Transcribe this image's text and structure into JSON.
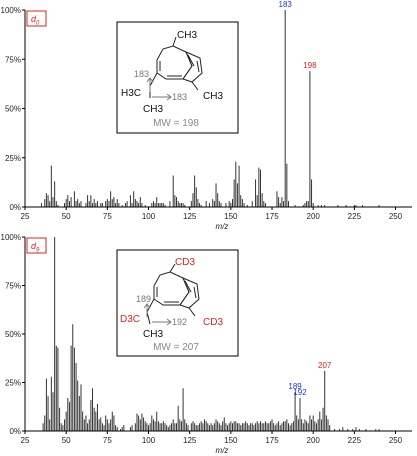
{
  "chart_data": [
    {
      "type": "bar",
      "badge": {
        "base": "d",
        "sub": "0"
      },
      "xlabel": "m/z",
      "xlim": [
        25,
        260
      ],
      "ylim": [
        0,
        100
      ],
      "xticks": [
        "25",
        "50",
        "75",
        "100",
        "125",
        "150",
        "175",
        "200",
        "225",
        "250"
      ],
      "yticks": [
        "0%",
        "25%",
        "50%",
        "75%",
        "100%"
      ],
      "grid": false,
      "peaks": [
        [
          35,
          2
        ],
        [
          37,
          4
        ],
        [
          38,
          7
        ],
        [
          39,
          6
        ],
        [
          40,
          3
        ],
        [
          41,
          21
        ],
        [
          42,
          5
        ],
        [
          43,
          13
        ],
        [
          44,
          3
        ],
        [
          45,
          1
        ],
        [
          49,
          2
        ],
        [
          50,
          4
        ],
        [
          51,
          6
        ],
        [
          52,
          3
        ],
        [
          53,
          5
        ],
        [
          55,
          8
        ],
        [
          56,
          3
        ],
        [
          57,
          4
        ],
        [
          58,
          2
        ],
        [
          59,
          3
        ],
        [
          62,
          2
        ],
        [
          63,
          6
        ],
        [
          64,
          3
        ],
        [
          65,
          6
        ],
        [
          66,
          2
        ],
        [
          67,
          4
        ],
        [
          68,
          2
        ],
        [
          69,
          3
        ],
        [
          71,
          2
        ],
        [
          72,
          2
        ],
        [
          74,
          3
        ],
        [
          75,
          4
        ],
        [
          76,
          3
        ],
        [
          77,
          8
        ],
        [
          78,
          4
        ],
        [
          79,
          5
        ],
        [
          80,
          2
        ],
        [
          81,
          4
        ],
        [
          82,
          2
        ],
        [
          84,
          1
        ],
        [
          86,
          2
        ],
        [
          87,
          3
        ],
        [
          89,
          6
        ],
        [
          90,
          2
        ],
        [
          91,
          8
        ],
        [
          92,
          4
        ],
        [
          93,
          3
        ],
        [
          94,
          2
        ],
        [
          95,
          5
        ],
        [
          96,
          2
        ],
        [
          98,
          1
        ],
        [
          102,
          2
        ],
        [
          103,
          3
        ],
        [
          104,
          2
        ],
        [
          105,
          5
        ],
        [
          106,
          2
        ],
        [
          107,
          2
        ],
        [
          108,
          2
        ],
        [
          109,
          2
        ],
        [
          110,
          1
        ],
        [
          113,
          3
        ],
        [
          115,
          16
        ],
        [
          116,
          6
        ],
        [
          117,
          5
        ],
        [
          118,
          3
        ],
        [
          119,
          2
        ],
        [
          120,
          2
        ],
        [
          121,
          2
        ],
        [
          122,
          1
        ],
        [
          126,
          3
        ],
        [
          127,
          7
        ],
        [
          128,
          16
        ],
        [
          129,
          10
        ],
        [
          130,
          4
        ],
        [
          131,
          2
        ],
        [
          132,
          1
        ],
        [
          135,
          3
        ],
        [
          137,
          2
        ],
        [
          139,
          4
        ],
        [
          140,
          3
        ],
        [
          141,
          12
        ],
        [
          142,
          7
        ],
        [
          143,
          3
        ],
        [
          144,
          2
        ],
        [
          147,
          2
        ],
        [
          149,
          3
        ],
        [
          150,
          2
        ],
        [
          151,
          4
        ],
        [
          152,
          14
        ],
        [
          153,
          23
        ],
        [
          154,
          12
        ],
        [
          155,
          21
        ],
        [
          156,
          6
        ],
        [
          157,
          4
        ],
        [
          158,
          2
        ],
        [
          160,
          1
        ],
        [
          163,
          3
        ],
        [
          165,
          14
        ],
        [
          166,
          6
        ],
        [
          167,
          20
        ],
        [
          168,
          19
        ],
        [
          169,
          7
        ],
        [
          170,
          3
        ],
        [
          171,
          2
        ],
        [
          178,
          8
        ],
        [
          179,
          5
        ],
        [
          180,
          2
        ],
        [
          181,
          5
        ],
        [
          182,
          3
        ],
        [
          183,
          100
        ],
        [
          184,
          22
        ],
        [
          185,
          3
        ],
        [
          189,
          1
        ],
        [
          194,
          1
        ],
        [
          195,
          2
        ],
        [
          196,
          3
        ],
        [
          197,
          3
        ],
        [
          198,
          69
        ],
        [
          199,
          14
        ],
        [
          200,
          2
        ],
        [
          203,
          1
        ],
        [
          205,
          1
        ],
        [
          207,
          1
        ],
        [
          215,
          1
        ],
        [
          220,
          1
        ],
        [
          225,
          1
        ],
        [
          226,
          1
        ],
        [
          230,
          1
        ],
        [
          240,
          1
        ]
      ],
      "labels": [
        {
          "x": 183,
          "y": 100,
          "text": "183",
          "color": "blue"
        },
        {
          "x": 198,
          "y": 69,
          "text": "198",
          "color": "red"
        }
      ],
      "molecule": {
        "substituents": [
          "CH3",
          "H3C",
          "CH3",
          "CH3"
        ],
        "fragments": [
          "183",
          "183"
        ],
        "mw": "MW = 198"
      }
    },
    {
      "type": "bar",
      "badge": {
        "base": "d",
        "sub": "9"
      },
      "xlabel": "m/z",
      "xlim": [
        25,
        260
      ],
      "ylim": [
        0,
        100
      ],
      "xticks": [
        "25",
        "50",
        "75",
        "100",
        "125",
        "150",
        "175",
        "200",
        "225",
        "250"
      ],
      "yticks": [
        "0%",
        "25%",
        "50%",
        "75%",
        "100%"
      ],
      "grid": false,
      "peaks": [
        [
          36,
          4
        ],
        [
          37,
          8
        ],
        [
          38,
          27
        ],
        [
          39,
          18
        ],
        [
          40,
          6
        ],
        [
          41,
          28
        ],
        [
          42,
          20
        ],
        [
          43,
          100
        ],
        [
          44,
          44
        ],
        [
          45,
          43
        ],
        [
          46,
          12
        ],
        [
          47,
          4
        ],
        [
          48,
          3
        ],
        [
          49,
          6
        ],
        [
          50,
          10
        ],
        [
          51,
          17
        ],
        [
          52,
          15
        ],
        [
          53,
          44
        ],
        [
          54,
          55
        ],
        [
          55,
          43
        ],
        [
          56,
          35
        ],
        [
          57,
          26
        ],
        [
          58,
          18
        ],
        [
          59,
          24
        ],
        [
          60,
          10
        ],
        [
          61,
          6
        ],
        [
          62,
          8
        ],
        [
          63,
          4
        ],
        [
          64,
          6
        ],
        [
          65,
          16
        ],
        [
          66,
          22
        ],
        [
          67,
          12
        ],
        [
          68,
          10
        ],
        [
          69,
          14
        ],
        [
          70,
          6
        ],
        [
          71,
          7
        ],
        [
          72,
          4
        ],
        [
          73,
          3
        ],
        [
          74,
          8
        ],
        [
          75,
          6
        ],
        [
          76,
          4
        ],
        [
          77,
          6
        ],
        [
          78,
          10
        ],
        [
          79,
          8
        ],
        [
          80,
          3
        ],
        [
          81,
          2
        ],
        [
          83,
          1
        ],
        [
          84,
          2
        ],
        [
          85,
          3
        ],
        [
          89,
          2
        ],
        [
          90,
          3
        ],
        [
          92,
          4
        ],
        [
          93,
          9
        ],
        [
          94,
          8
        ],
        [
          95,
          6
        ],
        [
          96,
          9
        ],
        [
          97,
          7
        ],
        [
          98,
          5
        ],
        [
          99,
          4
        ],
        [
          100,
          3
        ],
        [
          101,
          4
        ],
        [
          102,
          8
        ],
        [
          103,
          6
        ],
        [
          104,
          5
        ],
        [
          105,
          10
        ],
        [
          106,
          5
        ],
        [
          107,
          4
        ],
        [
          108,
          4
        ],
        [
          109,
          5
        ],
        [
          110,
          4
        ],
        [
          111,
          3
        ],
        [
          112,
          2
        ],
        [
          113,
          3
        ],
        [
          114,
          4
        ],
        [
          115,
          6
        ],
        [
          116,
          4
        ],
        [
          117,
          4
        ],
        [
          118,
          13
        ],
        [
          119,
          6
        ],
        [
          120,
          5
        ],
        [
          121,
          22
        ],
        [
          122,
          6
        ],
        [
          123,
          4
        ],
        [
          124,
          3
        ],
        [
          126,
          4
        ],
        [
          127,
          5
        ],
        [
          128,
          4
        ],
        [
          129,
          3
        ],
        [
          130,
          3
        ],
        [
          131,
          4
        ],
        [
          132,
          5
        ],
        [
          133,
          4
        ],
        [
          134,
          6
        ],
        [
          135,
          5
        ],
        [
          136,
          4
        ],
        [
          137,
          3
        ],
        [
          138,
          4
        ],
        [
          139,
          3
        ],
        [
          140,
          4
        ],
        [
          141,
          6
        ],
        [
          142,
          5
        ],
        [
          143,
          4
        ],
        [
          144,
          3
        ],
        [
          145,
          5
        ],
        [
          146,
          7
        ],
        [
          147,
          4
        ],
        [
          148,
          3
        ],
        [
          149,
          4
        ],
        [
          150,
          5
        ],
        [
          151,
          4
        ],
        [
          152,
          5
        ],
        [
          153,
          5
        ],
        [
          154,
          4
        ],
        [
          155,
          4
        ],
        [
          156,
          3
        ],
        [
          157,
          4
        ],
        [
          158,
          4
        ],
        [
          159,
          5
        ],
        [
          160,
          4
        ],
        [
          161,
          3
        ],
        [
          162,
          4
        ],
        [
          163,
          4
        ],
        [
          164,
          3
        ],
        [
          165,
          4
        ],
        [
          166,
          5
        ],
        [
          167,
          4
        ],
        [
          168,
          5
        ],
        [
          169,
          4
        ],
        [
          170,
          4
        ],
        [
          171,
          5
        ],
        [
          172,
          4
        ],
        [
          173,
          4
        ],
        [
          174,
          5
        ],
        [
          175,
          6
        ],
        [
          176,
          4
        ],
        [
          177,
          3
        ],
        [
          178,
          4
        ],
        [
          179,
          5
        ],
        [
          180,
          3
        ],
        [
          181,
          4
        ],
        [
          182,
          5
        ],
        [
          183,
          5
        ],
        [
          184,
          6
        ],
        [
          185,
          4
        ],
        [
          186,
          3
        ],
        [
          187,
          4
        ],
        [
          188,
          5
        ],
        [
          189,
          20
        ],
        [
          190,
          8
        ],
        [
          191,
          6
        ],
        [
          192,
          17
        ],
        [
          193,
          6
        ],
        [
          194,
          4
        ],
        [
          195,
          6
        ],
        [
          196,
          5
        ],
        [
          197,
          4
        ],
        [
          198,
          8
        ],
        [
          199,
          6
        ],
        [
          200,
          8
        ],
        [
          201,
          5
        ],
        [
          202,
          4
        ],
        [
          203,
          6
        ],
        [
          204,
          10
        ],
        [
          205,
          6
        ],
        [
          206,
          12
        ],
        [
          207,
          31
        ],
        [
          208,
          8
        ],
        [
          209,
          6
        ],
        [
          210,
          3
        ],
        [
          213,
          1
        ],
        [
          216,
          1
        ],
        [
          218,
          2
        ],
        [
          221,
          1
        ],
        [
          224,
          1
        ],
        [
          226,
          2
        ],
        [
          228,
          1
        ],
        [
          232,
          1
        ],
        [
          238,
          1
        ],
        [
          240,
          1
        ]
      ],
      "labels": [
        {
          "x": 189,
          "y": 20,
          "text": "189",
          "color": "blue"
        },
        {
          "x": 192,
          "y": 17,
          "text": "192",
          "color": "blue"
        },
        {
          "x": 207,
          "y": 31,
          "text": "207",
          "color": "red"
        }
      ],
      "molecule": {
        "substituents": [
          "CD3",
          "D3C",
          "CH3",
          "CD3"
        ],
        "fragments": [
          "189",
          "192"
        ],
        "mw": "MW = 207"
      }
    }
  ]
}
